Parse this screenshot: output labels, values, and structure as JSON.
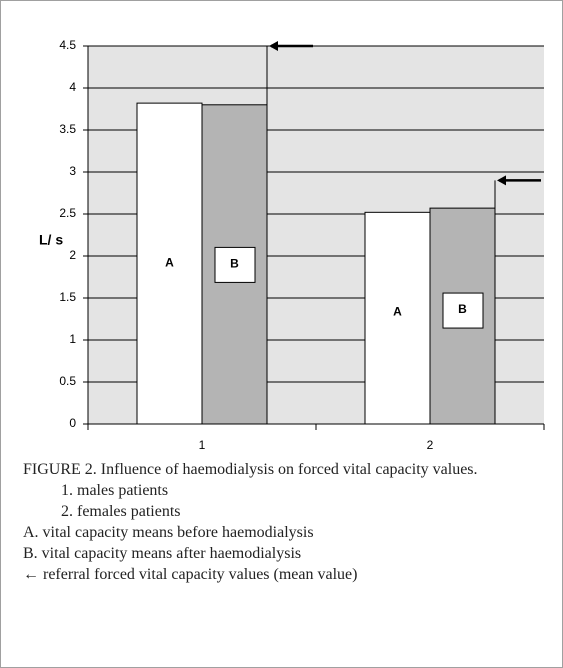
{
  "chart_data": {
    "type": "bar",
    "ylabel": "L/ s",
    "categories": [
      "1",
      "2"
    ],
    "series": [
      {
        "name": "A",
        "color": "#ffffff",
        "values": [
          3.82,
          2.52
        ]
      },
      {
        "name": "B",
        "color": "#b4b4b4",
        "values": [
          3.8,
          2.57
        ]
      }
    ],
    "reference_values": [
      4.5,
      2.9
    ],
    "ylim": [
      0,
      4.5
    ],
    "yticks": [
      0,
      0.5,
      1,
      1.5,
      2,
      2.5,
      3,
      3.5,
      4,
      4.5
    ],
    "grid": true
  },
  "caption": {
    "title": "FIGURE 2. Influence of haemodialysis on forced vital capacity values.",
    "categories": [
      "1. males patients",
      "2. females patients"
    ],
    "series": [
      "A. vital capacity means before haemodialysis",
      "B. vital capacity means after haemodialysis"
    ],
    "reference": "← referral forced vital capacity values (mean value)"
  }
}
